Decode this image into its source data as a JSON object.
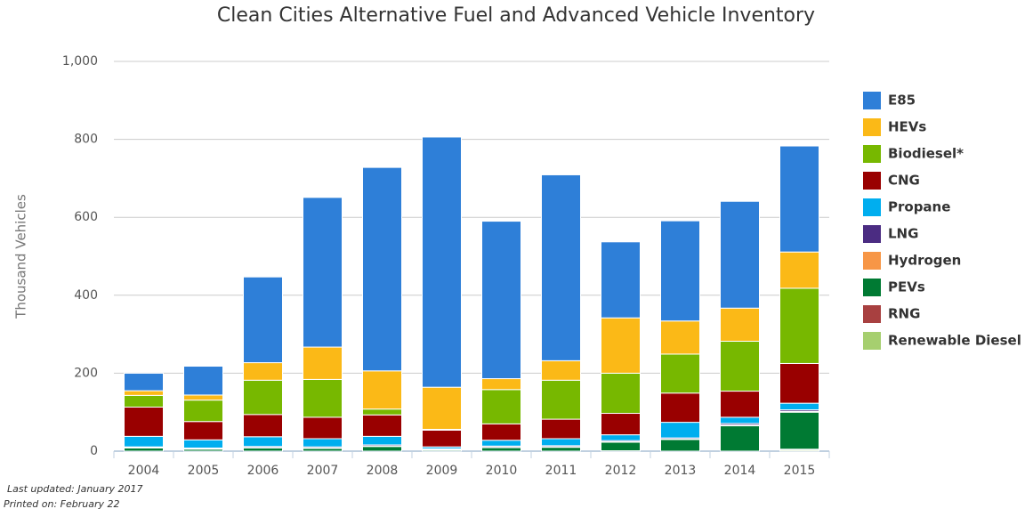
{
  "chart_data": {
    "type": "stacked_bar",
    "title": "Clean Cities Alternative Fuel and Advanced Vehicle Inventory",
    "y_label": "Thousand Vehicles",
    "categories": [
      "2004",
      "2005",
      "2006",
      "2007",
      "2008",
      "2009",
      "2010",
      "2011",
      "2012",
      "2013",
      "2014",
      "2015"
    ],
    "series": [
      {
        "name": "E85",
        "color": "#2e7fd8",
        "values": [
          45,
          74,
          220,
          384,
          522,
          642,
          404,
          477,
          195,
          257,
          274,
          272
        ]
      },
      {
        "name": "HEVs",
        "color": "#fbb917",
        "values": [
          12,
          13,
          45,
          83,
          98,
          108,
          28,
          50,
          142,
          85,
          85,
          93
        ]
      },
      {
        "name": "Biodiesel*",
        "color": "#77b800",
        "values": [
          30,
          55,
          88,
          97,
          15,
          2,
          88,
          100,
          103,
          100,
          128,
          193
        ]
      },
      {
        "name": "CNG",
        "color": "#990000",
        "values": [
          75,
          47,
          57,
          55,
          55,
          43,
          42,
          50,
          55,
          75,
          67,
          102
        ]
      },
      {
        "name": "Propane",
        "color": "#00aeef",
        "values": [
          27,
          21,
          25,
          21,
          22,
          5,
          15,
          18,
          15,
          40,
          16,
          17
        ]
      },
      {
        "name": "LNG",
        "color": "#4b2c82",
        "values": [
          2,
          2,
          3,
          3,
          3,
          2,
          3,
          3,
          3,
          3,
          4,
          4
        ]
      },
      {
        "name": "Hydrogen",
        "color": "#f79646",
        "values": [
          1,
          1,
          1,
          1,
          1,
          1,
          1,
          1,
          1,
          1,
          2,
          2
        ]
      },
      {
        "name": "PEVs",
        "color": "#007a33",
        "values": [
          8,
          5,
          8,
          7,
          12,
          3,
          9,
          10,
          22,
          30,
          65,
          95
        ]
      },
      {
        "name": "RNG",
        "color": "#a84040",
        "values": [
          0,
          0,
          0,
          0,
          0,
          0,
          0,
          0,
          1,
          0,
          0,
          2
        ]
      },
      {
        "name": "Renewable Diesel",
        "color": "#a6cf6f",
        "values": [
          0,
          0,
          0,
          0,
          0,
          0,
          0,
          0,
          0,
          0,
          0,
          3
        ]
      }
    ],
    "ylim": [
      0,
      1000
    ],
    "yticks": [
      0,
      200,
      400,
      600,
      800,
      {
        "value": 1000,
        "label": "1,000"
      }
    ],
    "grid": true,
    "legend": "right",
    "notes": [
      "Last updated: January 2017",
      "Printed on: February 22"
    ]
  }
}
